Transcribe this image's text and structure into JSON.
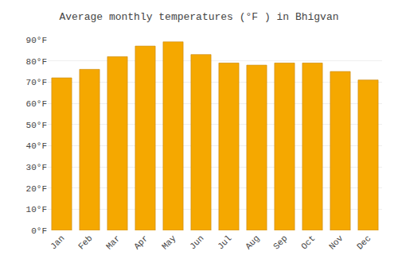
{
  "chart_data": {
    "type": "bar",
    "title": "Average monthly temperatures (°F ) in Bhigvan",
    "categories": [
      "Jan",
      "Feb",
      "Mar",
      "Apr",
      "May",
      "Jun",
      "Jul",
      "Aug",
      "Sep",
      "Oct",
      "Nov",
      "Dec"
    ],
    "values": [
      72,
      76,
      82,
      87,
      89,
      83,
      79,
      78,
      79,
      79,
      75,
      71
    ],
    "color": "#F5A800",
    "ylim": [
      0,
      90
    ],
    "yticks": [
      {
        "value": 0,
        "label": "0°F"
      },
      {
        "value": 10,
        "label": "10°F"
      },
      {
        "value": 20,
        "label": "20°F"
      },
      {
        "value": 30,
        "label": "30°F"
      },
      {
        "value": 40,
        "label": "40°F"
      },
      {
        "value": 50,
        "label": "50°F"
      },
      {
        "value": 60,
        "label": "60°F"
      },
      {
        "value": 70,
        "label": "70°F"
      },
      {
        "value": 80,
        "label": "80°F"
      },
      {
        "value": 90,
        "label": "90°F"
      }
    ],
    "grid": true
  }
}
